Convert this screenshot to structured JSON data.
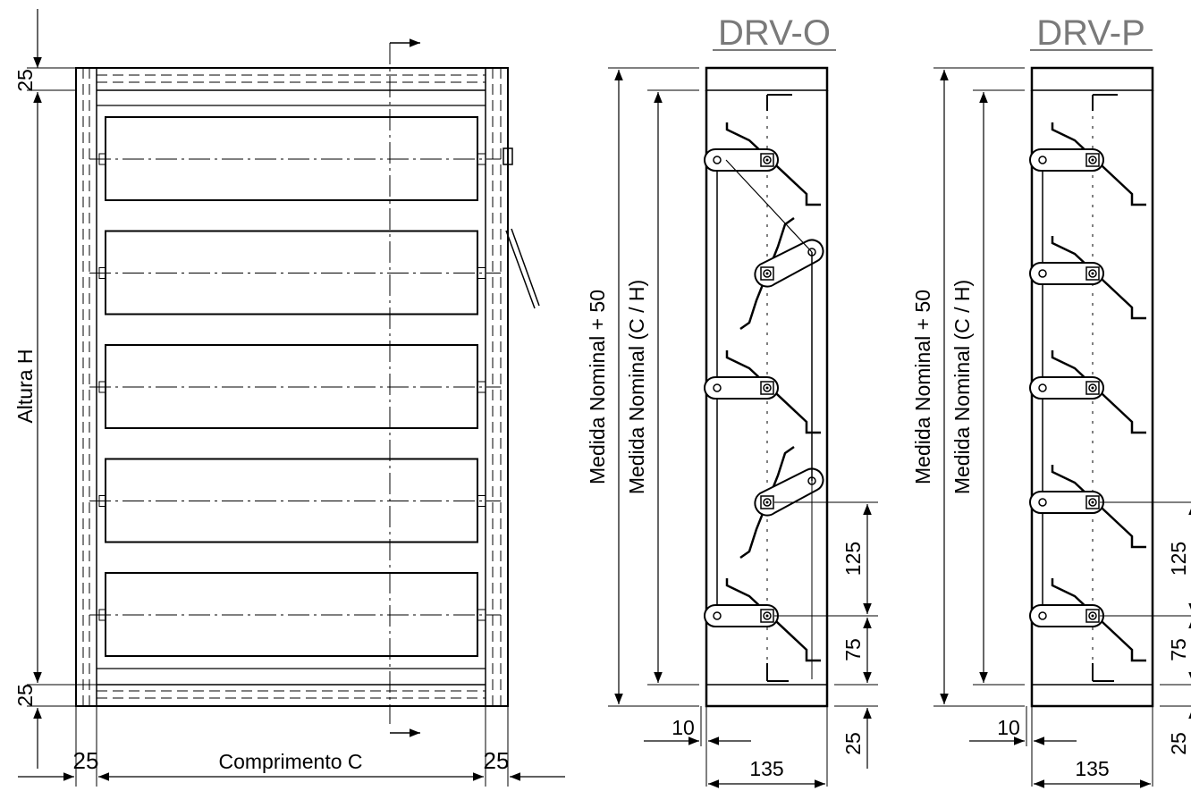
{
  "front_view": {
    "height_label": "Altura H",
    "length_label": "Comprimento C",
    "top_frame_dim": "25",
    "bottom_frame_dim": "25",
    "left_frame_dim": "25",
    "right_frame_dim": "25",
    "blade_count": 5
  },
  "section_o": {
    "title": "DRV-O",
    "outer_label": "Medida Nominal + 50",
    "inner_label": "Medida Nominal (C / H)",
    "pitch_dim": "125",
    "end_dim": "75",
    "flange_dim": "25",
    "lip_dim": "10",
    "depth_dim": "135"
  },
  "section_p": {
    "title": "DRV-P",
    "outer_label": "Medida Nominal + 50",
    "inner_label": "Medida Nominal (C / H)",
    "pitch_dim": "125",
    "end_dim": "75",
    "flange_dim": "25",
    "lip_dim": "10",
    "depth_dim": "135"
  }
}
